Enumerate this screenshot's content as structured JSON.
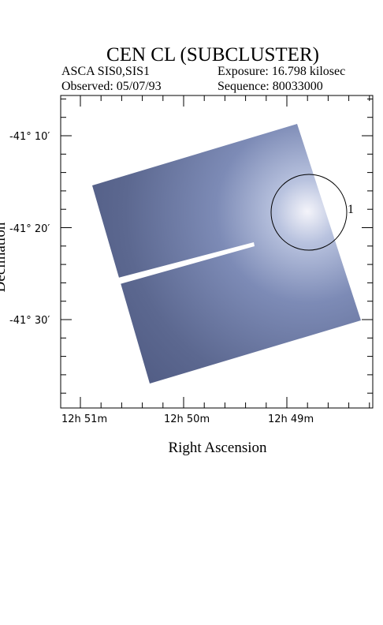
{
  "header": {
    "title": "CEN CL (SUBCLUSTER)",
    "instrument": "ASCA SIS0,SIS1",
    "exposure": "Exposure: 16.798 kilosec",
    "observed": "Observed: 05/07/93",
    "sequence": "Sequence: 80033000"
  },
  "axes": {
    "x_label": "Right Ascension",
    "y_label": "Declination",
    "x_ticks": [
      "12h 51m",
      "12h 50m",
      "12h 49m"
    ],
    "y_ticks": [
      "-41° 10′",
      "-41° 20′",
      "-41° 30′"
    ]
  },
  "regions": [
    {
      "label": "1"
    }
  ]
}
